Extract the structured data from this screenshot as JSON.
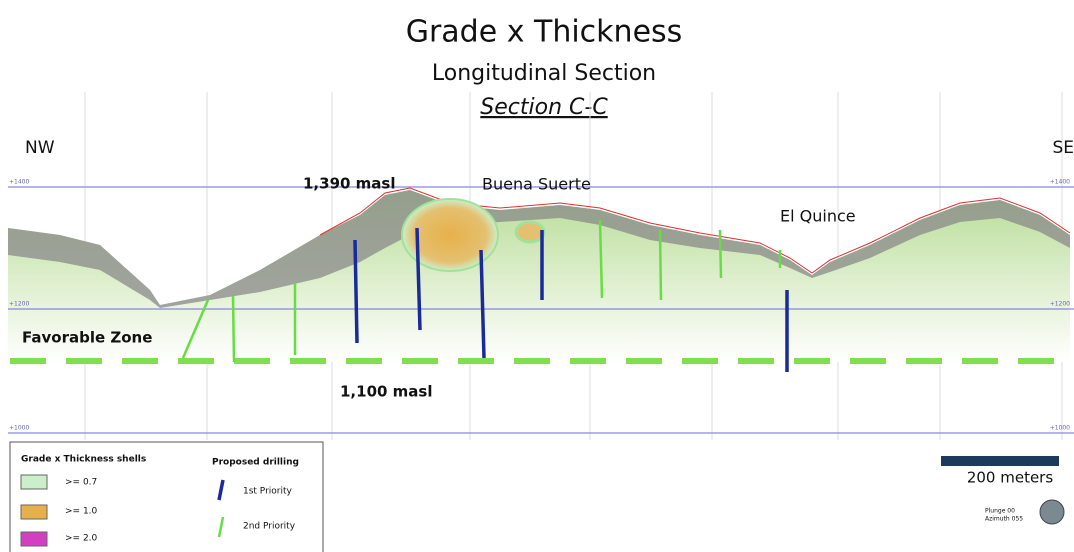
{
  "header": {
    "title": "Grade x Thickness",
    "subtitle": "Longitudinal Section",
    "section": "Section C-C"
  },
  "labels": {
    "nw": "NW",
    "se": "SE",
    "peak": "1,390 masl",
    "buena_suerte": "Buena Suerte",
    "el_quince": "El Quince",
    "favorable_zone": "Favorable Zone",
    "base": "1,100 masl"
  },
  "elevations": [
    "+1400",
    "+1200",
    "+1000"
  ],
  "legend": {
    "shells_title": "Grade x Thickness shells",
    "shells": [
      ">= 0.7",
      ">= 1.0",
      ">= 2.0"
    ],
    "drilling_title": "Proposed drilling",
    "drilling": [
      "1st Priority",
      "2nd Priority"
    ]
  },
  "scale": {
    "label": "200 meters"
  },
  "orientation": {
    "plunge": "Plunge 00",
    "azimuth": "Azimuth 055"
  }
}
